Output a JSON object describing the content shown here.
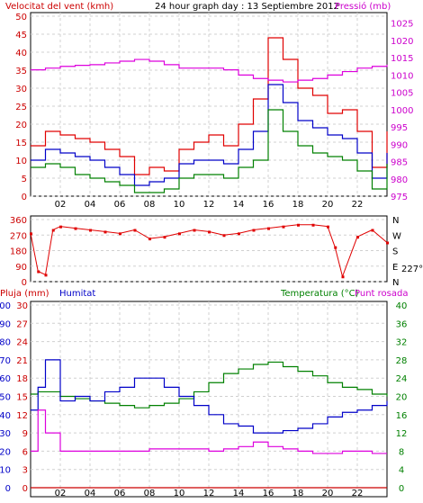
{
  "chart_data": [
    {
      "type": "line",
      "title": "24 hour graph day : 13 Septiembre 2012",
      "ylabel_left": "Velocitat del vent (kmh)",
      "ylabel_right": "Pressió (mb)",
      "x_ticks": [
        "02",
        "04",
        "06",
        "08",
        "10",
        "12",
        "14",
        "16",
        "18",
        "20",
        "22"
      ],
      "ylim_left": [
        0,
        50
      ],
      "yticks_left": [
        0,
        5,
        10,
        15,
        20,
        25,
        30,
        35,
        40,
        45,
        50
      ],
      "ylim_right": [
        975,
        1027
      ],
      "yticks_right": [
        975,
        980,
        985,
        990,
        995,
        1000,
        1005,
        1010,
        1015,
        1020,
        1025
      ],
      "grid": true,
      "colors": {
        "gust": "#e00000",
        "avg": "#0000c8",
        "min": "#008000",
        "pressure": "#dd00dd",
        "text_left": "#cc0000",
        "text_right": "#cc00cc"
      },
      "x": [
        0,
        1,
        2,
        3,
        4,
        5,
        6,
        7,
        8,
        9,
        10,
        11,
        12,
        13,
        14,
        15,
        16,
        17,
        18,
        19,
        20,
        21,
        22,
        23,
        24
      ],
      "series": [
        {
          "role": "gust",
          "values": [
            14,
            18,
            17,
            16,
            15,
            13,
            11,
            6,
            8,
            7,
            13,
            15,
            17,
            14,
            20,
            27,
            44,
            38,
            30,
            28,
            23,
            24,
            18,
            8,
            18
          ]
        },
        {
          "role": "avg",
          "values": [
            10,
            13,
            12,
            11,
            10,
            8,
            6,
            3,
            4,
            5,
            9,
            10,
            10,
            9,
            13,
            18,
            31,
            26,
            21,
            19,
            17,
            16,
            12,
            5,
            12
          ]
        },
        {
          "role": "min",
          "values": [
            8,
            9,
            8,
            6,
            5,
            4,
            3,
            1,
            1,
            2,
            5,
            6,
            6,
            5,
            8,
            10,
            24,
            18,
            14,
            12,
            11,
            10,
            7,
            2,
            9
          ]
        },
        {
          "role": "pressure",
          "values": [
            1011.5,
            1012,
            1012.5,
            1012.8,
            1013,
            1013.5,
            1014,
            1014.5,
            1014,
            1013,
            1012,
            1012,
            1012,
            1011.5,
            1010,
            1009,
            1008.5,
            1008,
            1008.5,
            1009,
            1010,
            1011,
            1012,
            1012.5,
            1013
          ]
        }
      ]
    },
    {
      "type": "scatter",
      "ylabel_left": "",
      "yticks_left": [
        "360",
        "270",
        "180",
        "90",
        "0"
      ],
      "ylabel_right": [
        "N",
        "W",
        "S",
        "E",
        "N"
      ],
      "last_value": "227°",
      "ylim": [
        0,
        360
      ],
      "x": [
        0,
        0.5,
        1,
        1.5,
        2,
        3,
        4,
        5,
        6,
        7,
        8,
        9,
        10,
        11,
        12,
        13,
        14,
        15,
        16,
        17,
        18,
        19,
        20,
        20.5,
        21,
        22,
        23,
        24
      ],
      "values": [
        280,
        60,
        40,
        300,
        320,
        310,
        300,
        290,
        280,
        300,
        250,
        260,
        280,
        300,
        290,
        270,
        280,
        300,
        310,
        320,
        330,
        330,
        320,
        200,
        30,
        260,
        300,
        227
      ],
      "color": "#e00000"
    },
    {
      "type": "line",
      "labels": {
        "rain": "Pluja (mm)",
        "humidity": "Humitat",
        "temperature": "Temperatura (°C)",
        "dew": "Punt rosada"
      },
      "yticks_rain": [
        "0",
        "3",
        "6",
        "9",
        "12",
        "15",
        "18",
        "21",
        "24",
        "27",
        "30"
      ],
      "yticks_humidity": [
        "0",
        "10",
        "20",
        "30",
        "40",
        "50",
        "60",
        "70",
        "80",
        "90",
        "100"
      ],
      "yticks_temp": [
        "0",
        "4",
        "8",
        "12",
        "16",
        "20",
        "24",
        "28",
        "32",
        "36",
        "40"
      ],
      "x_ticks": [
        "02",
        "04",
        "06",
        "08",
        "10",
        "12",
        "14",
        "16",
        "18",
        "20",
        "22"
      ],
      "ylim_temp": [
        0,
        40
      ],
      "colors": {
        "rain": "#cc0000",
        "humidity": "#0000c8",
        "temperature": "#008000",
        "dew": "#dd00dd"
      },
      "x": [
        0,
        0.5,
        1,
        2,
        3,
        4,
        5,
        6,
        7,
        8,
        9,
        10,
        11,
        12,
        13,
        14,
        15,
        16,
        17,
        18,
        19,
        20,
        21,
        22,
        23,
        24
      ],
      "series": [
        {
          "role": "temperature",
          "values": [
            20.5,
            21,
            21,
            20,
            19.5,
            19,
            18.5,
            18,
            17.5,
            18,
            18.5,
            19.5,
            21,
            23,
            25,
            26,
            27,
            27.5,
            26.5,
            25.5,
            24.5,
            23,
            22,
            21.5,
            20.5,
            20
          ]
        },
        {
          "role": "humidity_temp_scale",
          "values": [
            17,
            22,
            28,
            19,
            20,
            19,
            21,
            22,
            24,
            24,
            22,
            20,
            18,
            16,
            14,
            13.5,
            12,
            12,
            12.5,
            13,
            14,
            15.5,
            16.5,
            17,
            18,
            19
          ]
        },
        {
          "role": "dew",
          "values": [
            8,
            17,
            12,
            8,
            8,
            8,
            8,
            8,
            8,
            8.5,
            8.5,
            8.5,
            8.5,
            8,
            8.5,
            9,
            10,
            9,
            8.5,
            8,
            7.5,
            7.5,
            8,
            8,
            7.5,
            7.5
          ]
        },
        {
          "role": "rain",
          "values": [
            0,
            0,
            0,
            0,
            0,
            0,
            0,
            0,
            0,
            0,
            0,
            0,
            0,
            0,
            0,
            0,
            0,
            0,
            0,
            0,
            0,
            0,
            0,
            0,
            0,
            0
          ]
        }
      ]
    }
  ]
}
